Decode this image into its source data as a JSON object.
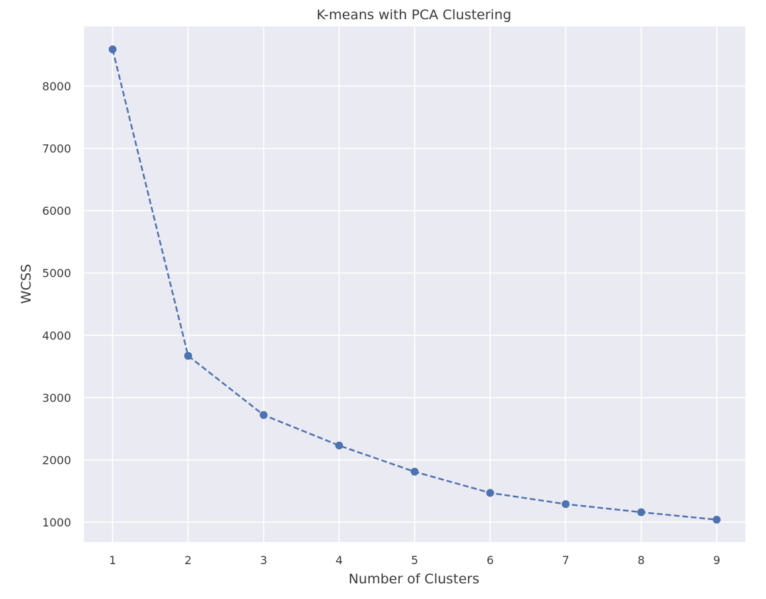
{
  "chart_data": {
    "type": "line",
    "title": "K-means with PCA Clustering",
    "xlabel": "Number of Clusters",
    "ylabel": "WCSS",
    "x": [
      1,
      2,
      3,
      4,
      5,
      6,
      7,
      8,
      9
    ],
    "series": [
      {
        "values": [
          8590,
          3670,
          2720,
          2230,
          1810,
          1470,
          1290,
          1160,
          1040
        ],
        "color": "#4c72b0",
        "line_style": "dashed",
        "marker": "circle"
      }
    ],
    "xticks": [
      1,
      2,
      3,
      4,
      5,
      6,
      7,
      8,
      9
    ],
    "yticks": [
      1000,
      2000,
      3000,
      4000,
      5000,
      6000,
      7000,
      8000
    ],
    "xlim": [
      0.62,
      9.38
    ],
    "ylim": [
      680,
      8960
    ],
    "grid": true,
    "background_color": "#eaeaf2",
    "grid_color": "#ffffff"
  }
}
